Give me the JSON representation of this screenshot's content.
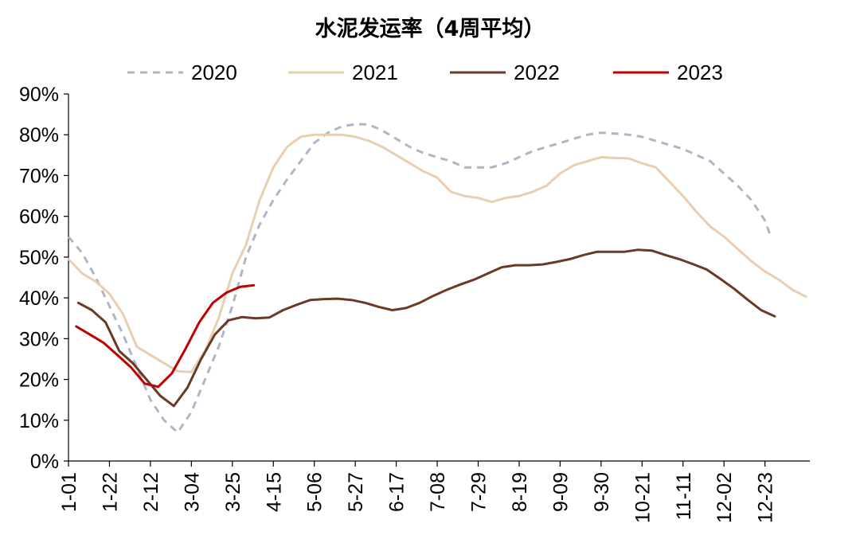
{
  "chart_data": {
    "type": "line",
    "title": "水泥发运率（4周平均）",
    "xlabel": "",
    "ylabel": "",
    "ylim": [
      0,
      90
    ],
    "y_ticks": [
      "0%",
      "10%",
      "20%",
      "30%",
      "40%",
      "50%",
      "60%",
      "70%",
      "80%",
      "90%"
    ],
    "x_ticks": [
      "1-01",
      "1-22",
      "2-12",
      "3-04",
      "3-25",
      "4-15",
      "5-06",
      "5-27",
      "6-17",
      "7-08",
      "7-29",
      "8-19",
      "9-09",
      "9-30",
      "10-21",
      "11-11",
      "12-02",
      "12-23"
    ],
    "x_unit": "day of year (1 = 1-01)",
    "legend_position": "top",
    "grid": false,
    "series": [
      {
        "name": "2020",
        "color": "#b4b4c8",
        "style": "dashed",
        "points": [
          [
            1,
            55.0
          ],
          [
            8,
            51.0
          ],
          [
            15,
            45.0
          ],
          [
            22,
            38.0
          ],
          [
            29,
            31.0
          ],
          [
            36,
            23.0
          ],
          [
            43,
            15.0
          ],
          [
            50,
            10.0
          ],
          [
            57,
            7.0
          ],
          [
            64,
            12.0
          ],
          [
            71,
            20.0
          ],
          [
            78,
            28.0
          ],
          [
            85,
            38.0
          ],
          [
            92,
            50.0
          ],
          [
            99,
            58.0
          ],
          [
            106,
            64.0
          ],
          [
            113,
            69.0
          ],
          [
            120,
            73.5
          ],
          [
            127,
            78.0
          ],
          [
            134,
            80.5
          ],
          [
            141,
            82.0
          ],
          [
            148,
            82.6
          ],
          [
            155,
            82.5
          ],
          [
            162,
            81.0
          ],
          [
            169,
            79.0
          ],
          [
            176,
            77.0
          ],
          [
            183,
            75.5
          ],
          [
            190,
            74.5
          ],
          [
            197,
            73.5
          ],
          [
            204,
            72.0
          ],
          [
            211,
            72.0
          ],
          [
            218,
            72.0
          ],
          [
            225,
            73.0
          ],
          [
            232,
            74.5
          ],
          [
            239,
            76.0
          ],
          [
            246,
            77.0
          ],
          [
            253,
            78.0
          ],
          [
            260,
            79.0
          ],
          [
            267,
            80.0
          ],
          [
            274,
            80.5
          ],
          [
            281,
            80.3
          ],
          [
            288,
            80.0
          ],
          [
            295,
            79.5
          ],
          [
            302,
            78.5
          ],
          [
            309,
            77.5
          ],
          [
            316,
            76.5
          ],
          [
            323,
            75.0
          ],
          [
            330,
            73.5
          ],
          [
            337,
            70.5
          ],
          [
            344,
            67.5
          ],
          [
            351,
            64.0
          ],
          [
            358,
            59.0
          ],
          [
            361,
            55.0
          ]
        ]
      },
      {
        "name": "2021",
        "color": "#e8cfb2",
        "style": "solid",
        "points": [
          [
            1,
            49.5
          ],
          [
            8,
            46.0
          ],
          [
            15,
            44.0
          ],
          [
            22,
            41.0
          ],
          [
            29,
            36.0
          ],
          [
            36,
            28.0
          ],
          [
            43,
            26.0
          ],
          [
            50,
            24.0
          ],
          [
            57,
            22.0
          ],
          [
            64,
            21.8
          ],
          [
            71,
            27.0
          ],
          [
            78,
            35.0
          ],
          [
            85,
            46.0
          ],
          [
            92,
            53.0
          ],
          [
            99,
            64.0
          ],
          [
            106,
            72.0
          ],
          [
            113,
            77.0
          ],
          [
            120,
            79.5
          ],
          [
            127,
            80.0
          ],
          [
            134,
            80.0
          ],
          [
            141,
            80.0
          ],
          [
            148,
            79.5
          ],
          [
            155,
            78.5
          ],
          [
            162,
            77.0
          ],
          [
            169,
            75.0
          ],
          [
            176,
            73.0
          ],
          [
            183,
            71.0
          ],
          [
            190,
            69.5
          ],
          [
            197,
            66.0
          ],
          [
            204,
            65.0
          ],
          [
            211,
            64.5
          ],
          [
            218,
            63.5
          ],
          [
            225,
            64.5
          ],
          [
            232,
            65.0
          ],
          [
            239,
            66.0
          ],
          [
            246,
            67.5
          ],
          [
            253,
            70.5
          ],
          [
            260,
            72.5
          ],
          [
            267,
            73.5
          ],
          [
            274,
            74.5
          ],
          [
            281,
            74.3
          ],
          [
            288,
            74.2
          ],
          [
            295,
            73.0
          ],
          [
            302,
            72.0
          ],
          [
            309,
            68.5
          ],
          [
            316,
            65.0
          ],
          [
            323,
            61.0
          ],
          [
            330,
            57.5
          ],
          [
            337,
            55.0
          ],
          [
            344,
            52.0
          ],
          [
            351,
            49.0
          ],
          [
            358,
            46.5
          ],
          [
            365,
            44.5
          ],
          [
            372,
            42.0
          ],
          [
            379,
            40.3
          ]
        ]
      },
      {
        "name": "2022",
        "color": "#6b3a26",
        "style": "solid",
        "points": [
          [
            6,
            38.8
          ],
          [
            13,
            37.0
          ],
          [
            20,
            34.0
          ],
          [
            27,
            27.0
          ],
          [
            34,
            24.0
          ],
          [
            41,
            20.0
          ],
          [
            48,
            16.0
          ],
          [
            55,
            13.5
          ],
          [
            62,
            18.0
          ],
          [
            69,
            25.0
          ],
          [
            76,
            31.0
          ],
          [
            83,
            34.5
          ],
          [
            90,
            35.3
          ],
          [
            97,
            35.0
          ],
          [
            104,
            35.2
          ],
          [
            111,
            37.0
          ],
          [
            118,
            38.3
          ],
          [
            125,
            39.5
          ],
          [
            132,
            39.7
          ],
          [
            139,
            39.8
          ],
          [
            146,
            39.5
          ],
          [
            153,
            38.8
          ],
          [
            160,
            37.8
          ],
          [
            167,
            37.0
          ],
          [
            174,
            37.5
          ],
          [
            181,
            38.8
          ],
          [
            188,
            40.5
          ],
          [
            195,
            42.0
          ],
          [
            202,
            43.3
          ],
          [
            209,
            44.5
          ],
          [
            216,
            46.0
          ],
          [
            223,
            47.5
          ],
          [
            230,
            48.0
          ],
          [
            237,
            48.0
          ],
          [
            244,
            48.2
          ],
          [
            251,
            48.8
          ],
          [
            258,
            49.5
          ],
          [
            265,
            50.5
          ],
          [
            272,
            51.3
          ],
          [
            279,
            51.3
          ],
          [
            286,
            51.3
          ],
          [
            293,
            51.8
          ],
          [
            300,
            51.6
          ],
          [
            307,
            50.5
          ],
          [
            314,
            49.5
          ],
          [
            321,
            48.3
          ],
          [
            328,
            47.0
          ],
          [
            335,
            44.7
          ],
          [
            342,
            42.3
          ],
          [
            349,
            39.6
          ],
          [
            356,
            37.0
          ],
          [
            363,
            35.5
          ]
        ]
      },
      {
        "name": "2023",
        "color": "#c00000",
        "style": "solid",
        "points": [
          [
            5,
            33.0
          ],
          [
            12,
            31.0
          ],
          [
            19,
            29.0
          ],
          [
            26,
            26.0
          ],
          [
            33,
            23.0
          ],
          [
            40,
            19.0
          ],
          [
            47,
            18.2
          ],
          [
            54,
            21.5
          ],
          [
            61,
            27.5
          ],
          [
            68,
            34.0
          ],
          [
            75,
            38.8
          ],
          [
            82,
            41.3
          ],
          [
            89,
            42.7
          ],
          [
            96,
            43.1
          ]
        ]
      }
    ]
  }
}
